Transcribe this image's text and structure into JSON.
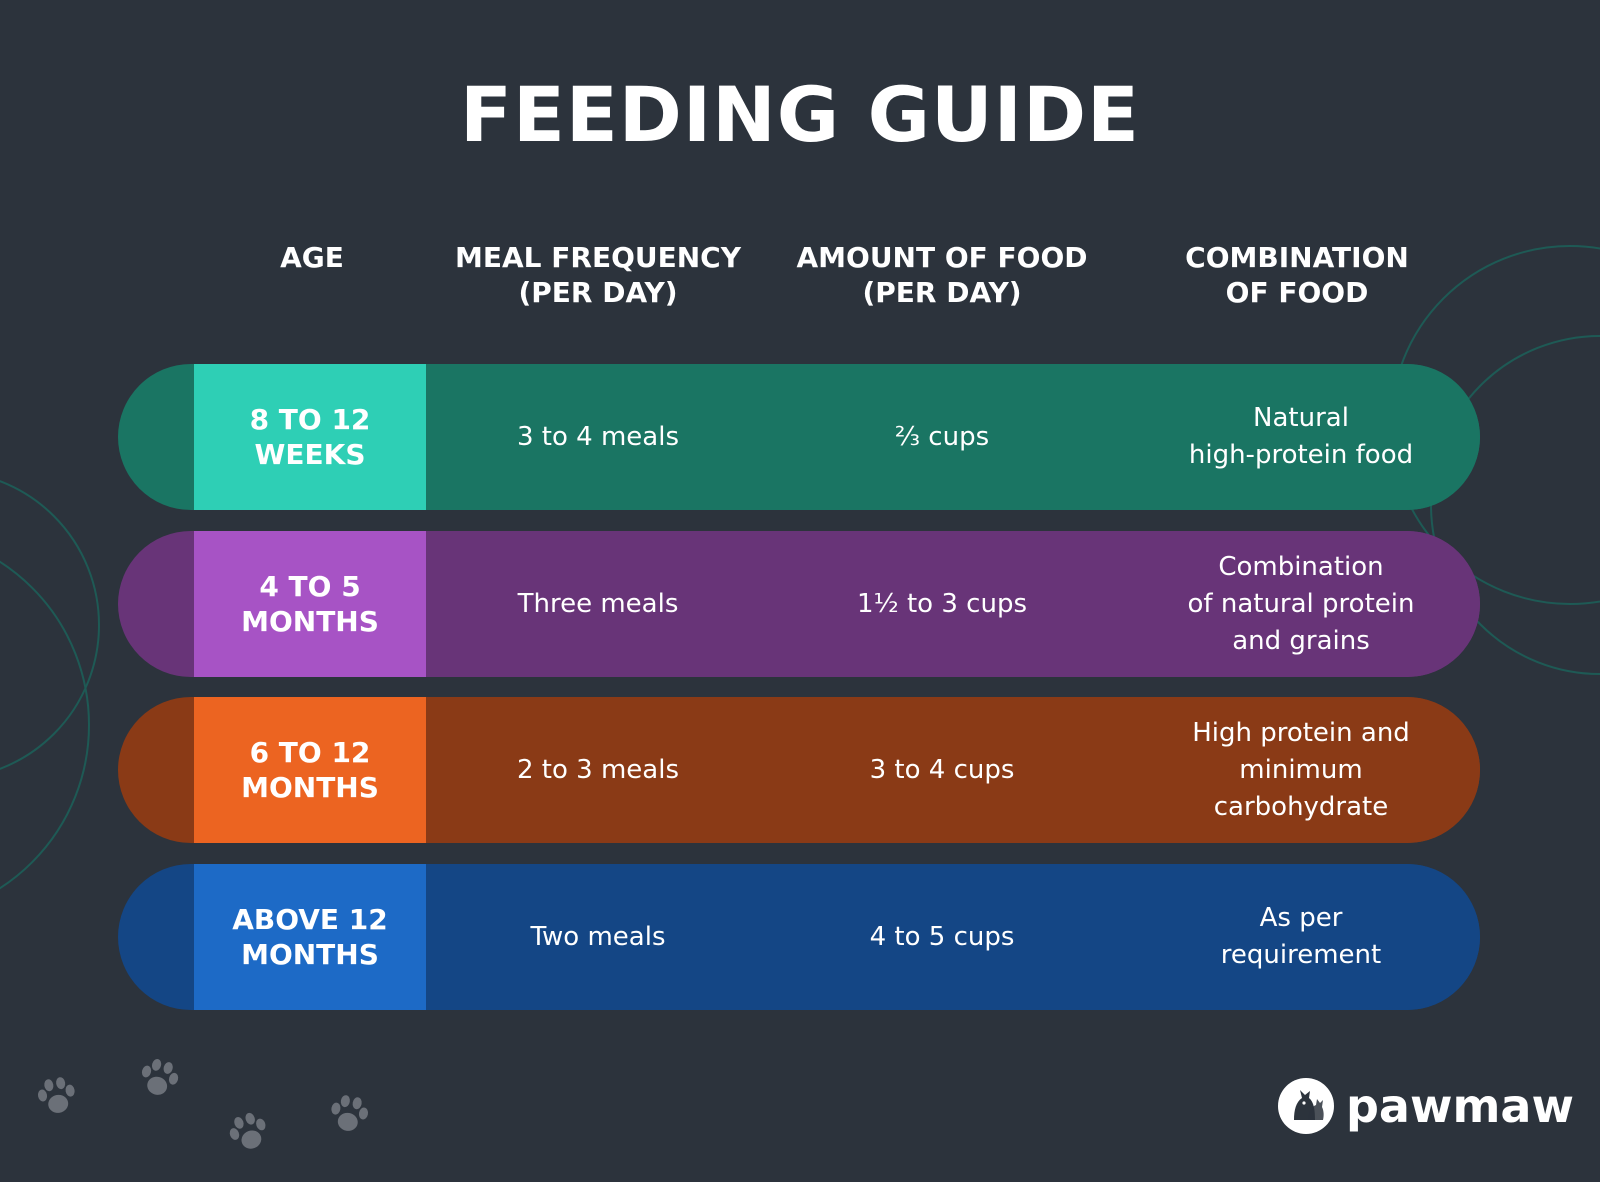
{
  "title": "FEEDING GUIDE",
  "headers": {
    "age": "AGE",
    "meal_frequency": "MEAL FREQUENCY\n(PER DAY)",
    "amount_of_food": "AMOUNT OF FOOD\n(PER DAY)",
    "combination_of_food": "COMBINATION\nOF FOOD"
  },
  "rows": [
    {
      "age": "8 TO 12\nWEEKS",
      "meal_frequency": "3 to 4 meals",
      "amount_of_food": "⅔ cups",
      "combination_of_food": "Natural\nhigh-protein food",
      "colors": {
        "dark": "#1a7563",
        "accent": "#2ecfb5"
      }
    },
    {
      "age": "4 TO 5\nMONTHS",
      "meal_frequency": "Three meals",
      "amount_of_food": "1½ to 3 cups",
      "combination_of_food": "Combination\nof natural protein\nand grains",
      "colors": {
        "dark": "#683478",
        "accent": "#a753c5"
      }
    },
    {
      "age": "6 TO 12\nMONTHS",
      "meal_frequency": "2 to 3 meals",
      "amount_of_food": "3 to 4 cups",
      "combination_of_food": "High protein and\nminimum\ncarbohydrate",
      "colors": {
        "dark": "#8a3a16",
        "accent": "#ec6421"
      }
    },
    {
      "age": "ABOVE 12\nMONTHS",
      "meal_frequency": "Two meals",
      "amount_of_food": "4 to 5 cups",
      "combination_of_food": "As per\nrequirement",
      "colors": {
        "dark": "#144685",
        "accent": "#1d6ac6"
      }
    }
  ],
  "brand": {
    "name": "pawmaw",
    "logo_icon": "dog-cat-silhouette-icon"
  },
  "decorations": {
    "icon": "paw-print-icon",
    "count": 4
  },
  "colors": {
    "background": "#2c333c",
    "text": "#ffffff",
    "paw": "#6b7078"
  }
}
